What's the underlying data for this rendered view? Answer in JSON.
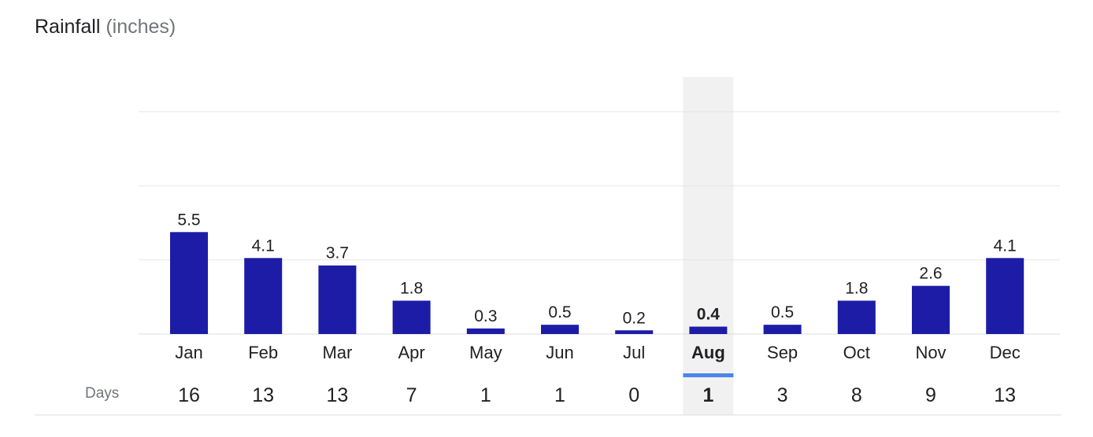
{
  "title": {
    "main": "Rainfall",
    "unit": "(inches)"
  },
  "days_row_label": "Days",
  "selected_index": 7,
  "colors": {
    "bar": "#1c1ca6",
    "highlight_band": "#f1f1f1",
    "selected_underline": "#4a86e8"
  },
  "chart_data": {
    "type": "bar",
    "title": "Rainfall (inches)",
    "categories": [
      "Jan",
      "Feb",
      "Mar",
      "Apr",
      "May",
      "Jun",
      "Jul",
      "Aug",
      "Sep",
      "Oct",
      "Nov",
      "Dec"
    ],
    "values": [
      5.5,
      4.1,
      3.7,
      1.8,
      0.3,
      0.5,
      0.2,
      0.4,
      0.5,
      1.8,
      2.6,
      4.1
    ],
    "value_labels": [
      "5.5",
      "4.1",
      "3.7",
      "1.8",
      "0.3",
      "0.5",
      "0.2",
      "0.4",
      "0.5",
      "1.8",
      "2.6",
      "4.1"
    ],
    "days": [
      "16",
      "13",
      "13",
      "7",
      "1",
      "1",
      "0",
      "1",
      "3",
      "8",
      "9",
      "13"
    ],
    "ylim": [
      0,
      12
    ],
    "gridlines": [
      4,
      8,
      12
    ],
    "grid": true,
    "legend": "none"
  }
}
